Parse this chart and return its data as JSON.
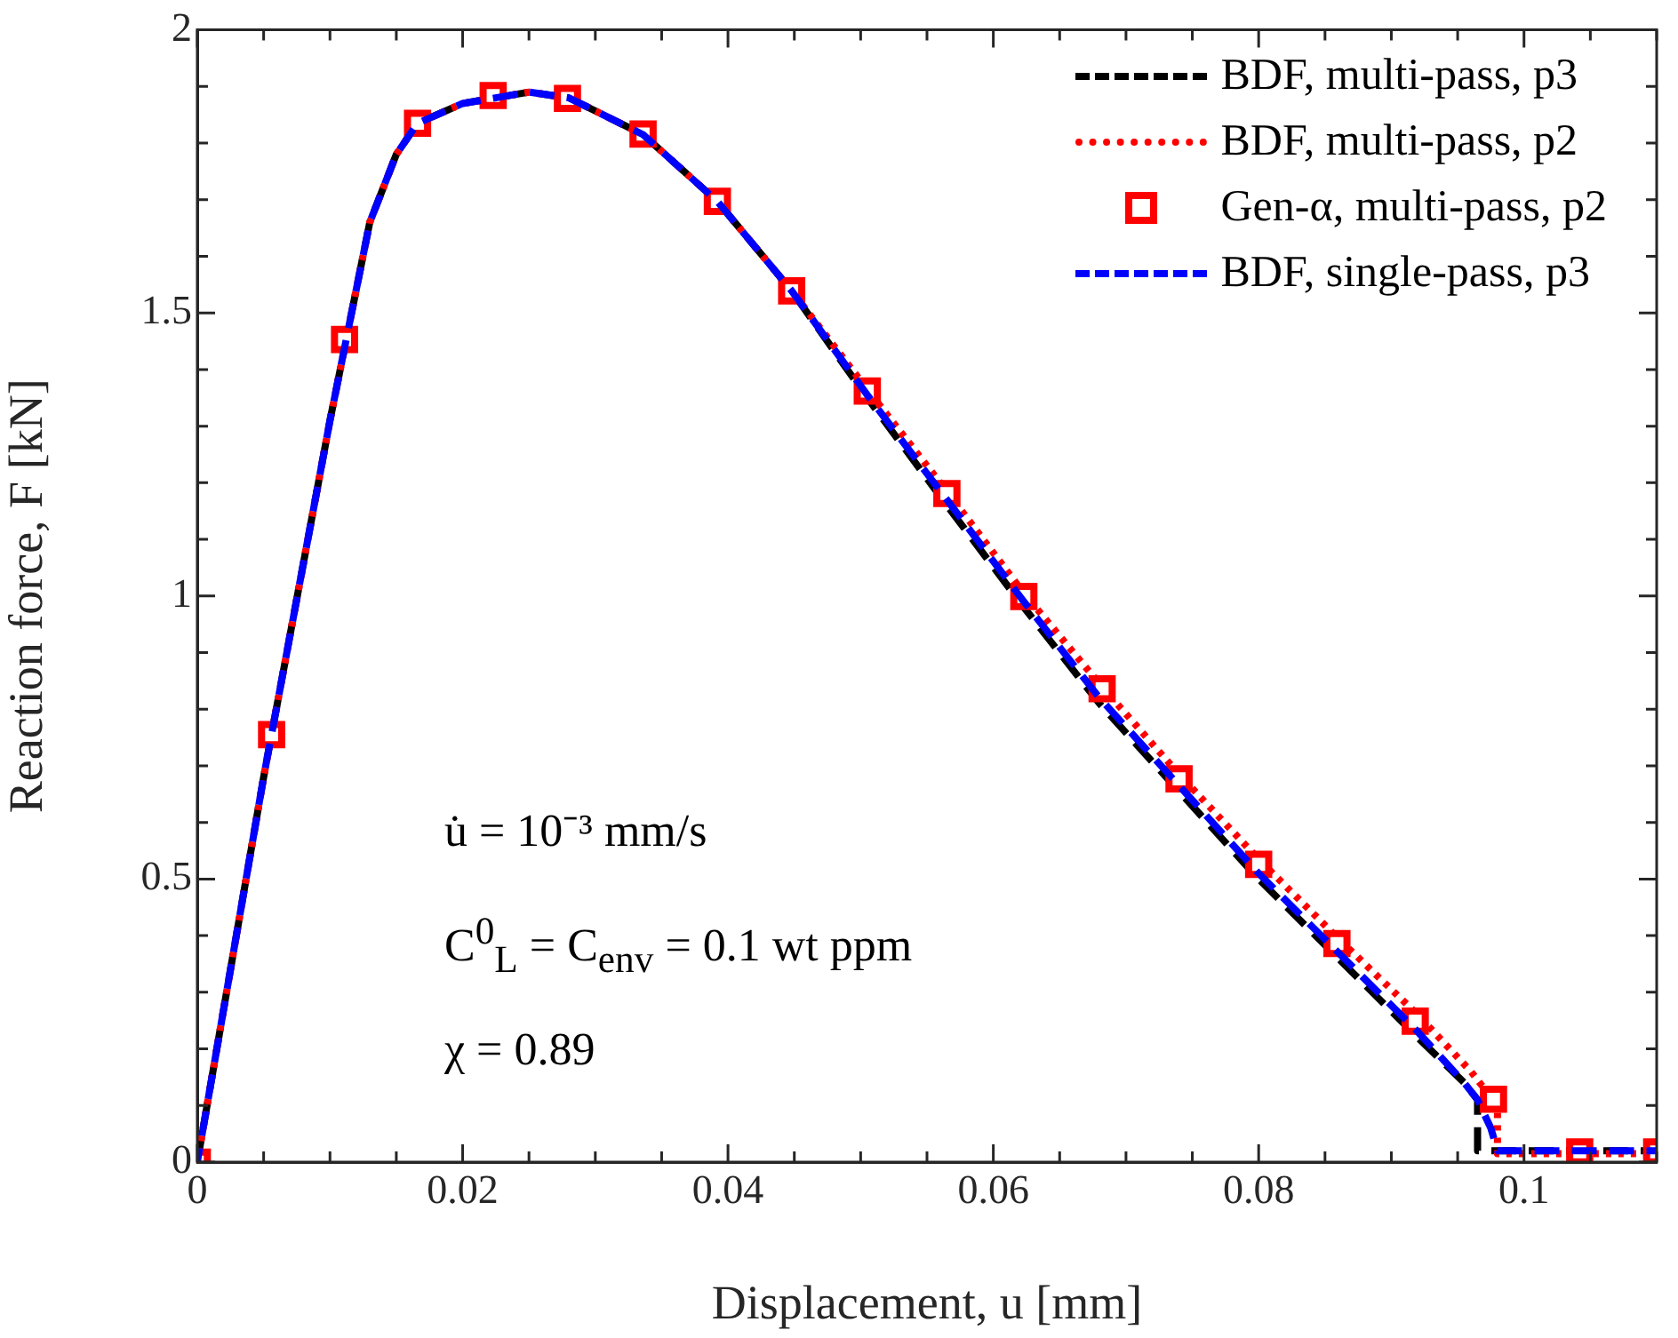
{
  "chart_data": {
    "type": "line",
    "xlabel": "Displacement, u [mm]",
    "ylabel": "Reaction force, F [kN]",
    "annotations": [
      "u̇ = 10⁻³ mm/s",
      "C$^{0}$$_{L}$ = C$_{env}$ = 0.1 wt ppm",
      "χ = 0.89"
    ],
    "xlim": [
      0,
      0.11
    ],
    "ylim": [
      0,
      2
    ],
    "xticks": [
      0,
      {
        "value": 0.005,
        "label": null
      },
      {
        "value": 0.01,
        "label": null
      },
      {
        "value": 0.015,
        "label": null
      },
      0.02,
      {
        "value": 0.025,
        "label": null
      },
      {
        "value": 0.03,
        "label": null
      },
      {
        "value": 0.035,
        "label": null
      },
      0.04,
      {
        "value": 0.045,
        "label": null
      },
      {
        "value": 0.05,
        "label": null
      },
      {
        "value": 0.055,
        "label": null
      },
      0.06,
      {
        "value": 0.065,
        "label": null
      },
      {
        "value": 0.07,
        "label": null
      },
      {
        "value": 0.075,
        "label": null
      },
      0.08,
      {
        "value": 0.085,
        "label": null
      },
      {
        "value": 0.09,
        "label": null
      },
      {
        "value": 0.095,
        "label": null
      },
      0.1,
      {
        "value": 0.105,
        "label": null
      },
      {
        "value": 0.11,
        "label": null
      }
    ],
    "yticks": [
      0,
      {
        "value": 0.1,
        "label": null
      },
      {
        "value": 0.2,
        "label": null
      },
      {
        "value": 0.3,
        "label": null
      },
      {
        "value": 0.4,
        "label": null
      },
      0.5,
      {
        "value": 0.6,
        "label": null
      },
      {
        "value": 0.7,
        "label": null
      },
      {
        "value": 0.8,
        "label": null
      },
      {
        "value": 0.9,
        "label": null
      },
      1,
      {
        "value": 1.1,
        "label": null
      },
      {
        "value": 1.2,
        "label": null
      },
      {
        "value": 1.3,
        "label": null
      },
      {
        "value": 1.4,
        "label": null
      },
      1.5,
      {
        "value": 1.6,
        "label": null
      },
      {
        "value": 1.7,
        "label": null
      },
      {
        "value": 1.8,
        "label": null
      },
      {
        "value": 1.9,
        "label": null
      },
      2
    ],
    "grid": false,
    "legend": "top right",
    "series": [
      {
        "name": "BDF, multi-pass, p3",
        "color": "#000000",
        "line_style": "dashed",
        "marker": "none",
        "x": [
          0,
          0.005,
          0.01,
          0.013,
          0.015,
          0.0166,
          0.02,
          0.025,
          0.028,
          0.0336,
          0.0392,
          0.0448,
          0.0505,
          0.0565,
          0.0623,
          0.068,
          0.074,
          0.08,
          0.086,
          0.092,
          0.0955,
          0.0965,
          0.0965,
          0.1,
          0.11
        ],
        "values": [
          0,
          0.68,
          1.31,
          1.66,
          1.78,
          1.835,
          1.87,
          1.89,
          1.88,
          1.815,
          1.697,
          1.539,
          1.35,
          1.16,
          0.98,
          0.81,
          0.655,
          0.5,
          0.36,
          0.22,
          0.14,
          0.11,
          0.02,
          0.02,
          0.02
        ]
      },
      {
        "name": "BDF, multi-pass, p2",
        "color": "#ff0000",
        "line_style": "dotted",
        "marker": "none",
        "x": [
          0,
          0.005,
          0.01,
          0.013,
          0.015,
          0.0166,
          0.02,
          0.025,
          0.028,
          0.0336,
          0.0392,
          0.0448,
          0.0505,
          0.0565,
          0.0623,
          0.068,
          0.074,
          0.08,
          0.086,
          0.092,
          0.096,
          0.098,
          0.098,
          0.11
        ],
        "values": [
          0,
          0.68,
          1.31,
          1.66,
          1.78,
          1.835,
          1.87,
          1.89,
          1.88,
          1.815,
          1.697,
          1.539,
          1.365,
          1.185,
          1.005,
          0.845,
          0.685,
          0.535,
          0.395,
          0.26,
          0.16,
          0.1,
          0.015,
          0.015
        ]
      },
      {
        "name": "Gen-α, multi-pass, p2",
        "color": "#ff0000",
        "type": "scatter",
        "marker": "square",
        "x": [
          0,
          0.0056,
          0.0111,
          0.0166,
          0.0223,
          0.0279,
          0.0336,
          0.0392,
          0.0448,
          0.0505,
          0.0565,
          0.0623,
          0.0682,
          0.074,
          0.08,
          0.0859,
          0.0918,
          0.0977,
          0.1042,
          0.11
        ],
        "values": [
          0,
          0.755,
          1.453,
          1.835,
          1.884,
          1.879,
          1.816,
          1.697,
          1.539,
          1.362,
          1.181,
          0.999,
          0.836,
          0.677,
          0.526,
          0.386,
          0.249,
          0.111,
          0.018,
          0.018
        ]
      },
      {
        "name": "BDF, single-pass, p3",
        "color": "#0000ff",
        "line_style": "dashed",
        "marker": "none",
        "x": [
          0,
          0.005,
          0.01,
          0.013,
          0.015,
          0.0166,
          0.02,
          0.025,
          0.028,
          0.0336,
          0.0392,
          0.0448,
          0.0505,
          0.0565,
          0.0623,
          0.068,
          0.074,
          0.08,
          0.086,
          0.092,
          0.0955,
          0.0965,
          0.0975,
          0.098,
          0.11
        ],
        "values": [
          0,
          0.68,
          1.31,
          1.66,
          1.78,
          1.835,
          1.87,
          1.89,
          1.88,
          1.815,
          1.697,
          1.539,
          1.355,
          1.17,
          0.99,
          0.82,
          0.665,
          0.51,
          0.37,
          0.23,
          0.14,
          0.11,
          0.06,
          0.02,
          0.02
        ]
      }
    ]
  }
}
